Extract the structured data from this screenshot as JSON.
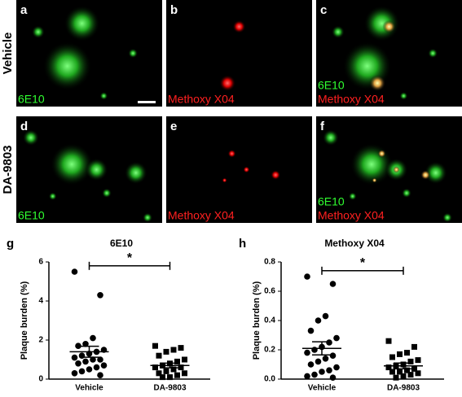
{
  "image_panels": {
    "row_labels": [
      "Vehicle",
      "DA-9803"
    ],
    "panels": [
      {
        "letter": "a",
        "labels": [
          "6E10"
        ]
      },
      {
        "letter": "b",
        "labels": [
          "Methoxy X04"
        ]
      },
      {
        "letter": "c",
        "labels": [
          "6E10",
          "Methoxy X04"
        ]
      },
      {
        "letter": "d",
        "labels": [
          "6E10"
        ]
      },
      {
        "letter": "e",
        "labels": [
          "Methoxy X04"
        ]
      },
      {
        "letter": "f",
        "labels": [
          "6E10",
          "Methoxy X04"
        ]
      }
    ]
  },
  "chart_data": [
    {
      "type": "dot",
      "panel_letter": "g",
      "title": "6E10",
      "ylabel": "Plaque burden (%)",
      "categories": [
        "Vehicle",
        "DA-9803"
      ],
      "color": "#000000",
      "groups": [
        {
          "marker": "circle",
          "values": [
            5.5,
            4.3,
            2.1,
            1.8,
            1.7,
            1.5,
            1.4,
            1.3,
            1.2,
            1.1,
            1.0,
            1.0,
            0.9,
            0.8,
            0.7,
            0.6,
            0.5,
            0.4,
            0.3,
            0.2
          ],
          "mean": 1.4,
          "sem": 0.28
        },
        {
          "marker": "square",
          "values": [
            1.7,
            1.6,
            1.5,
            1.4,
            1.2,
            1.0,
            0.9,
            0.8,
            0.7,
            0.6,
            0.6,
            0.5,
            0.4,
            0.3,
            0.3,
            0.2,
            0.1,
            0.1
          ],
          "mean": 0.7,
          "sem": 0.12
        }
      ],
      "ylim": [
        0,
        6
      ],
      "yticks": [
        0,
        2,
        4,
        6
      ],
      "annotation": "*",
      "significance_y": 5.8
    },
    {
      "type": "dot",
      "panel_letter": "h",
      "title": "Methoxy X04",
      "ylabel": "Plaque burden (%)",
      "categories": [
        "Vehicle",
        "DA-9803"
      ],
      "color": "#000000",
      "groups": [
        {
          "marker": "circle",
          "values": [
            0.7,
            0.65,
            0.43,
            0.4,
            0.33,
            0.28,
            0.25,
            0.22,
            0.2,
            0.18,
            0.16,
            0.14,
            0.12,
            0.1,
            0.08,
            0.06,
            0.05,
            0.03,
            0.02,
            0.01
          ],
          "mean": 0.21,
          "sem": 0.045
        },
        {
          "marker": "square",
          "values": [
            0.26,
            0.22,
            0.18,
            0.17,
            0.15,
            0.13,
            0.12,
            0.1,
            0.09,
            0.08,
            0.07,
            0.06,
            0.05,
            0.05,
            0.04,
            0.03,
            0.02,
            0.01
          ],
          "mean": 0.09,
          "sem": 0.02
        }
      ],
      "ylim": [
        0,
        0.8
      ],
      "yticks": [
        {
          "value": 0,
          "label": "0.0"
        },
        0.2,
        0.4,
        0.6,
        0.8
      ],
      "annotation": "*",
      "significance_y": 0.74
    }
  ]
}
